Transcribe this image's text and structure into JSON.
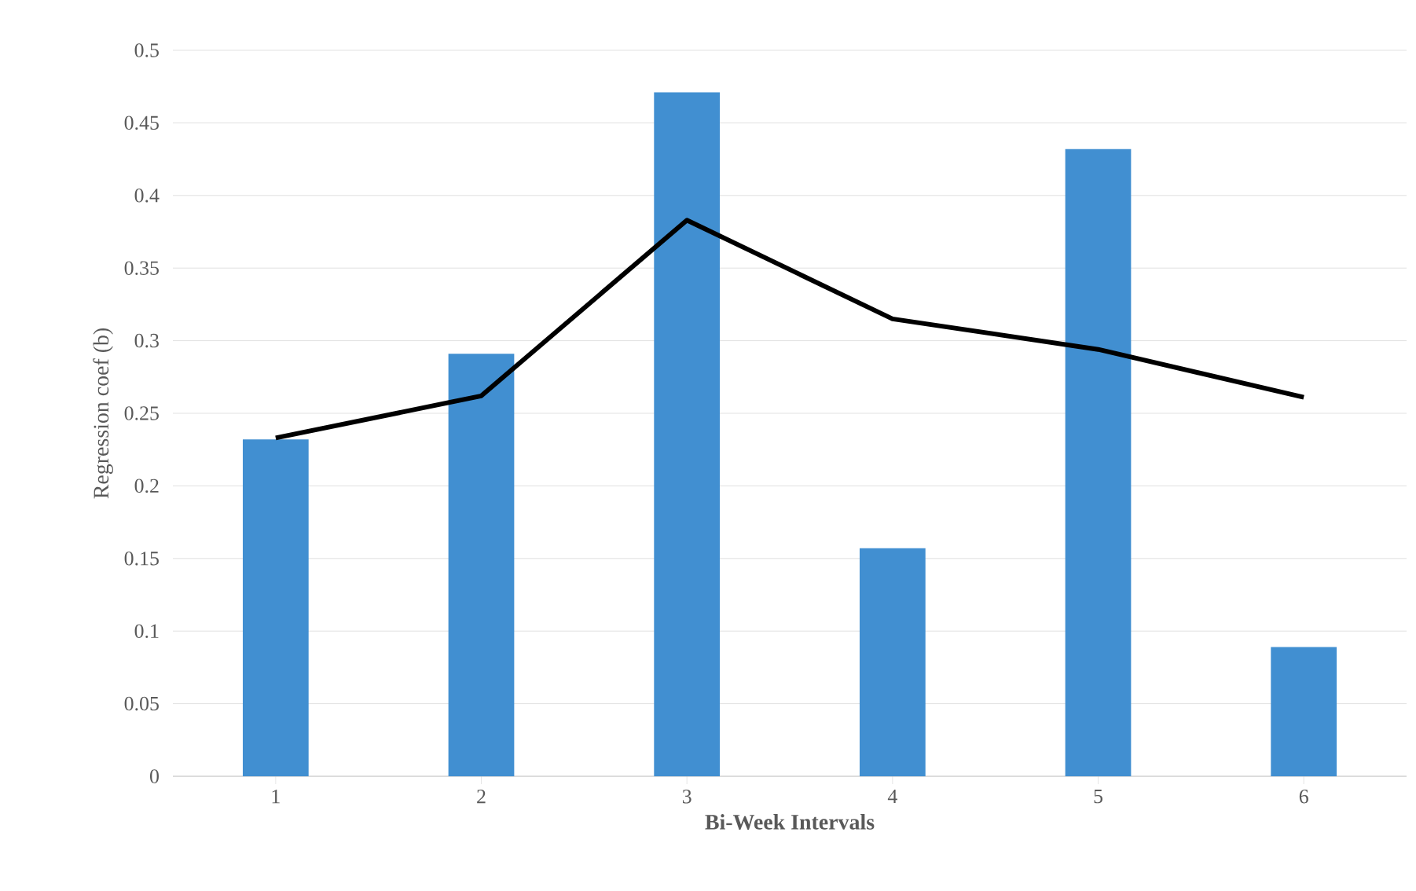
{
  "chart_data": {
    "type": "bar",
    "xlabel": "Bi-Week Intervals",
    "ylabel": "Regression coef (b)",
    "categories": [
      "1",
      "2",
      "3",
      "4",
      "5",
      "6"
    ],
    "series": [
      {
        "color": "#418fd1",
        "values": [
          0.232,
          0.291,
          0.471,
          0.157,
          0.432,
          0.089
        ]
      },
      {
        "type": "line",
        "color": "#000000",
        "values": [
          0.233,
          0.262,
          0.383,
          0.315,
          0.294,
          0.261
        ]
      }
    ],
    "ylim": [
      0,
      0.5
    ],
    "yticks": [
      0,
      0.05,
      0.1,
      0.15,
      0.2,
      0.25,
      0.3,
      0.35,
      0.4,
      0.45,
      0.5
    ],
    "grid": "y"
  }
}
